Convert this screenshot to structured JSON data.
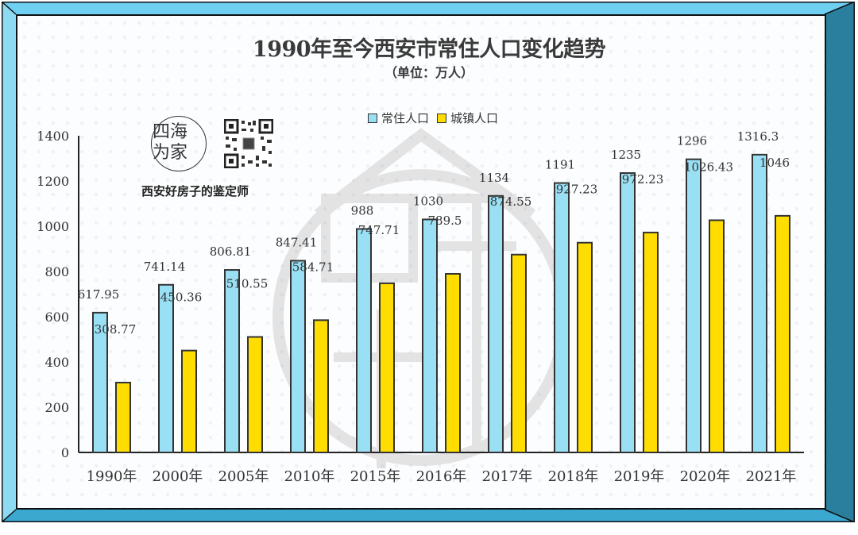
{
  "header": {
    "title": "1990年至今西安市常住人口变化趋势",
    "subtitle": "（单位：万人）"
  },
  "brand": {
    "logo_text": "四海为家",
    "tagline": "西安好房子的鉴定师",
    "qr_icon": "qr-code-icon"
  },
  "colors": {
    "frame_top": "#6fd0f2",
    "frame_left": "#8fdaf3",
    "frame_right": "#2a7f9e",
    "frame_bottom": "#3aa8cf",
    "series_resident": "#9ae0f5",
    "series_urban": "#ffdd00"
  },
  "chart_data": {
    "type": "bar",
    "title": "1990年至今西安市常住人口变化趋势",
    "subtitle": "（单位：万人）",
    "xlabel": "",
    "ylabel": "",
    "categories": [
      "1990年",
      "2000年",
      "2005年",
      "2010年",
      "2015年",
      "2016年",
      "2017年",
      "2018年",
      "2019年",
      "2020年",
      "2021年"
    ],
    "series": [
      {
        "name": "常住人口",
        "color": "#9ae0f5",
        "values": [
          617.95,
          741.14,
          806.81,
          847.41,
          988,
          1030,
          1134,
          1191,
          1235,
          1296,
          1316.3
        ],
        "labels": [
          "617.95",
          "741.14",
          "806.81",
          "847.41",
          "988",
          "1030",
          "1134",
          "1191",
          "1235",
          "1296",
          "1316.3"
        ]
      },
      {
        "name": "城镇人口",
        "color": "#ffdd00",
        "values": [
          308.77,
          450.36,
          510.55,
          584.71,
          747.71,
          789.5,
          874.55,
          927.23,
          972.23,
          1026.43,
          1046
        ],
        "labels": [
          "308.77",
          "450.36",
          "510.55",
          "584.71",
          "747.71",
          "789.5",
          "874.55",
          "927.23",
          "972.23",
          "1026.43",
          "1046"
        ]
      }
    ],
    "ylim": [
      0,
      1400
    ],
    "yticks": [
      0,
      200,
      400,
      600,
      800,
      1000,
      1200,
      1400
    ],
    "ytick_labels": [
      "0",
      "200",
      "400",
      "600",
      "800",
      "1000",
      "1200",
      "1400"
    ],
    "grid": false,
    "legend_position": "top-center"
  }
}
